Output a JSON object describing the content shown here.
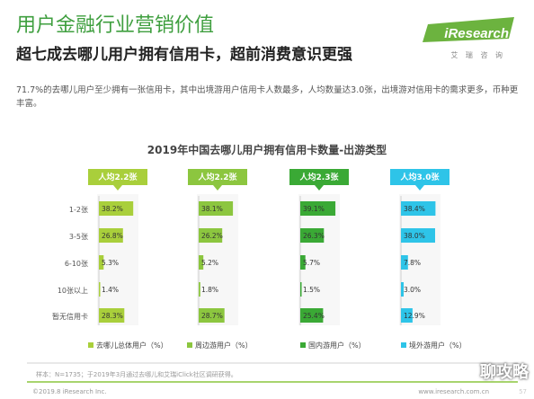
{
  "page": {
    "title": "用户金融行业营销价值",
    "headline": "超七成去哪儿用户拥有信用卡，超前消费意识更强",
    "summary": "71.7%的去哪儿用户至少拥有一张信用卡，其中出境游用户信用卡人数最多，人均数量达3.0张，出境游对信用卡的需求更多，币种更丰富。",
    "source": "样本：N=1735；于2019年3月通过去哪儿和艾瑞iClick社区调研获得。",
    "copyright": "©2019.8 iResearch Inc.",
    "site": "www.iresearch.com.cn",
    "watermark": "聊攻略",
    "page_number": "57"
  },
  "brand": {
    "name": "iResearch",
    "tagline": "艾 瑞 咨 询",
    "color": "#6cb33f"
  },
  "chart_data": {
    "type": "bar",
    "title": "2019年中国去哪儿用户拥有信用卡数量-出游类型",
    "categories": [
      "1-2张",
      "3-5张",
      "6-10张",
      "10张以上",
      "暂无信用卡"
    ],
    "series": [
      {
        "name": "去哪儿总体用户（%）",
        "badge": "人均2.2张",
        "color": "#a9cf3b",
        "values": [
          38.2,
          26.8,
          5.3,
          1.4,
          28.3
        ],
        "labels": [
          "38.2%",
          "26.8%",
          "5.3%",
          "1.4%",
          "28.3%"
        ]
      },
      {
        "name": "周边游用户（%）",
        "badge": "人均2.2张",
        "color": "#8cc63f",
        "values": [
          38.1,
          26.2,
          5.2,
          1.8,
          28.7
        ],
        "labels": [
          "38.1%",
          "26.2%",
          "5.2%",
          "1.8%",
          "28.7%"
        ]
      },
      {
        "name": "国内游用户（%）",
        "badge": "人均2.3张",
        "color": "#3aa935",
        "values": [
          39.1,
          26.3,
          5.7,
          1.5,
          25.4
        ],
        "labels": [
          "39.1%",
          "26.3%",
          "5.7%",
          "1.5%",
          "25.4%"
        ]
      },
      {
        "name": "境外游用户（%）",
        "badge": "人均3.0张",
        "color": "#2ec4e8",
        "values": [
          38.4,
          38.0,
          7.8,
          3.0,
          12.9
        ],
        "labels": [
          "38.4%",
          "38.0%",
          "7.8%",
          "3.0%",
          "12.9%"
        ]
      }
    ],
    "xlim": [
      0,
      40
    ],
    "grid": false,
    "legend_position": "bottom"
  }
}
